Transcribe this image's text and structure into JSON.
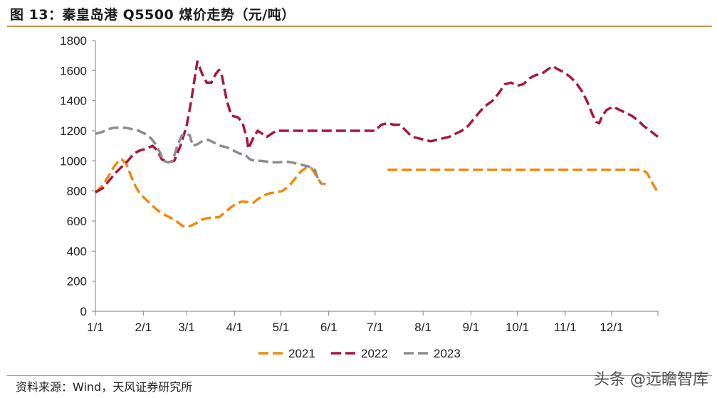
{
  "header": {
    "title": "图 13：秦皇岛港 Q5500 煤价走势（元/吨）"
  },
  "footer": {
    "source": "资料来源：Wind，天风证券研究所",
    "watermark": "头条 @远瞻智库"
  },
  "colors": {
    "accent_rule": "#c8964a",
    "axis": "#7f7f7f"
  },
  "chart_data": {
    "type": "line",
    "title": "图 13：秦皇岛港 Q5500 煤价走势（元/吨）",
    "xlabel": "",
    "ylabel": "",
    "ylim": [
      0,
      1800
    ],
    "yticks": [
      0,
      200,
      400,
      600,
      800,
      1000,
      1200,
      1400,
      1600,
      1800
    ],
    "xlim": [
      1,
      365
    ],
    "xticks": [
      {
        "day": 1,
        "label": "1/1"
      },
      {
        "day": 32,
        "label": "2/1"
      },
      {
        "day": 60,
        "label": "3/1"
      },
      {
        "day": 91,
        "label": "4/1"
      },
      {
        "day": 121,
        "label": "5/1"
      },
      {
        "day": 152,
        "label": "6/1"
      },
      {
        "day": 182,
        "label": "7/1"
      },
      {
        "day": 213,
        "label": "8/1"
      },
      {
        "day": 244,
        "label": "9/1"
      },
      {
        "day": 274,
        "label": "10/1"
      },
      {
        "day": 305,
        "label": "11/1"
      },
      {
        "day": 335,
        "label": "12/1"
      }
    ],
    "grid": false,
    "legend_position": "bottom",
    "series": [
      {
        "name": "2021",
        "color": "#ef8a0c",
        "segments": [
          [
            [
              1,
              790
            ],
            [
              5,
              830
            ],
            [
              9,
              890
            ],
            [
              13,
              960
            ],
            [
              16,
              1000
            ],
            [
              18,
              1010
            ],
            [
              21,
              980
            ],
            [
              24,
              900
            ],
            [
              27,
              830
            ],
            [
              30,
              780
            ],
            [
              34,
              740
            ],
            [
              38,
              700
            ],
            [
              42,
              665
            ],
            [
              46,
              640
            ],
            [
              50,
              620
            ],
            [
              54,
              595
            ],
            [
              57,
              570
            ],
            [
              60,
              560
            ],
            [
              63,
              570
            ],
            [
              66,
              585
            ],
            [
              70,
              610
            ],
            [
              74,
              620
            ],
            [
              78,
              625
            ],
            [
              81,
              625
            ],
            [
              84,
              650
            ],
            [
              88,
              685
            ],
            [
              92,
              715
            ],
            [
              96,
              730
            ],
            [
              100,
              725
            ],
            [
              103,
              720
            ],
            [
              106,
              745
            ],
            [
              110,
              770
            ],
            [
              114,
              785
            ],
            [
              118,
              790
            ],
            [
              122,
              800
            ],
            [
              126,
              830
            ],
            [
              130,
              880
            ],
            [
              134,
              930
            ],
            [
              138,
              960
            ],
            [
              141,
              950
            ],
            [
              144,
              900
            ],
            [
              147,
              850
            ],
            [
              150,
              845
            ]
          ],
          [
            [
              190,
              940
            ],
            [
              230,
              940
            ],
            [
              270,
              940
            ],
            [
              300,
              940
            ],
            [
              330,
              940
            ],
            [
              355,
              940
            ],
            [
              358,
              920
            ],
            [
              361,
              860
            ],
            [
              365,
              790
            ]
          ]
        ]
      },
      {
        "name": "2022",
        "color": "#a8173e",
        "segments": [
          [
            [
              1,
              790
            ],
            [
              6,
              820
            ],
            [
              10,
              870
            ],
            [
              14,
              920
            ],
            [
              18,
              960
            ],
            [
              22,
              1000
            ],
            [
              26,
              1050
            ],
            [
              30,
              1070
            ],
            [
              34,
              1080
            ],
            [
              38,
              1100
            ],
            [
              41,
              1070
            ],
            [
              44,
              1010
            ],
            [
              48,
              990
            ],
            [
              52,
              1000
            ],
            [
              56,
              1100
            ],
            [
              60,
              1230
            ],
            [
              63,
              1400
            ],
            [
              66,
              1600
            ],
            [
              67,
              1660
            ],
            [
              70,
              1580
            ],
            [
              73,
              1520
            ],
            [
              76,
              1520
            ],
            [
              79,
              1580
            ],
            [
              81,
              1605
            ],
            [
              83,
              1560
            ],
            [
              86,
              1400
            ],
            [
              89,
              1300
            ],
            [
              93,
              1290
            ],
            [
              96,
              1260
            ],
            [
              99,
              1150
            ],
            [
              100,
              1080
            ],
            [
              103,
              1150
            ],
            [
              106,
              1200
            ],
            [
              109,
              1180
            ],
            [
              112,
              1160
            ],
            [
              115,
              1180
            ],
            [
              118,
              1200
            ],
            [
              121,
              1200
            ],
            [
              150,
              1200
            ],
            [
              174,
              1200
            ],
            [
              182,
              1200
            ],
            [
              186,
              1240
            ],
            [
              190,
              1250
            ],
            [
              194,
              1240
            ],
            [
              198,
              1240
            ],
            [
              202,
              1200
            ],
            [
              206,
              1160
            ],
            [
              210,
              1150
            ],
            [
              214,
              1140
            ],
            [
              218,
              1130
            ],
            [
              222,
              1140
            ],
            [
              226,
              1150
            ],
            [
              230,
              1160
            ],
            [
              234,
              1180
            ],
            [
              238,
              1200
            ],
            [
              242,
              1230
            ],
            [
              246,
              1280
            ],
            [
              250,
              1330
            ],
            [
              254,
              1370
            ],
            [
              258,
              1400
            ],
            [
              262,
              1450
            ],
            [
              266,
              1510
            ],
            [
              270,
              1520
            ],
            [
              274,
              1500
            ],
            [
              278,
              1510
            ],
            [
              282,
              1550
            ],
            [
              286,
              1570
            ],
            [
              290,
              1580
            ],
            [
              294,
              1610
            ],
            [
              297,
              1630
            ],
            [
              300,
              1610
            ],
            [
              304,
              1590
            ],
            [
              308,
              1560
            ],
            [
              312,
              1520
            ],
            [
              316,
              1460
            ],
            [
              319,
              1400
            ],
            [
              321,
              1350
            ],
            [
              323,
              1300
            ],
            [
              325,
              1260
            ],
            [
              327,
              1250
            ],
            [
              329,
              1300
            ],
            [
              332,
              1340
            ],
            [
              336,
              1360
            ],
            [
              340,
              1340
            ],
            [
              344,
              1320
            ],
            [
              348,
              1300
            ],
            [
              352,
              1270
            ],
            [
              356,
              1230
            ],
            [
              360,
              1200
            ],
            [
              365,
              1160
            ]
          ]
        ]
      },
      {
        "name": "2023",
        "color": "#8c8c8c",
        "segments": [
          [
            [
              1,
              1180
            ],
            [
              5,
              1190
            ],
            [
              9,
              1210
            ],
            [
              13,
              1220
            ],
            [
              17,
              1220
            ],
            [
              21,
              1220
            ],
            [
              25,
              1210
            ],
            [
              29,
              1200
            ],
            [
              33,
              1180
            ],
            [
              37,
              1150
            ],
            [
              40,
              1110
            ],
            [
              43,
              1050
            ],
            [
              45,
              1000
            ],
            [
              48,
              990
            ],
            [
              51,
              1000
            ],
            [
              54,
              1100
            ],
            [
              57,
              1170
            ],
            [
              60,
              1180
            ],
            [
              62,
              1170
            ],
            [
              64,
              1100
            ],
            [
              67,
              1110
            ],
            [
              70,
              1130
            ],
            [
              74,
              1140
            ],
            [
              78,
              1120
            ],
            [
              82,
              1100
            ],
            [
              86,
              1090
            ],
            [
              90,
              1070
            ],
            [
              94,
              1050
            ],
            [
              98,
              1040
            ],
            [
              101,
              1010
            ],
            [
              104,
              1000
            ],
            [
              108,
              1000
            ],
            [
              112,
              995
            ],
            [
              116,
              990
            ],
            [
              120,
              990
            ],
            [
              124,
              995
            ],
            [
              128,
              990
            ],
            [
              132,
              980
            ],
            [
              136,
              970
            ],
            [
              140,
              960
            ],
            [
              143,
              940
            ],
            [
              145,
              880
            ],
            [
              147,
              850
            ]
          ]
        ]
      }
    ]
  }
}
